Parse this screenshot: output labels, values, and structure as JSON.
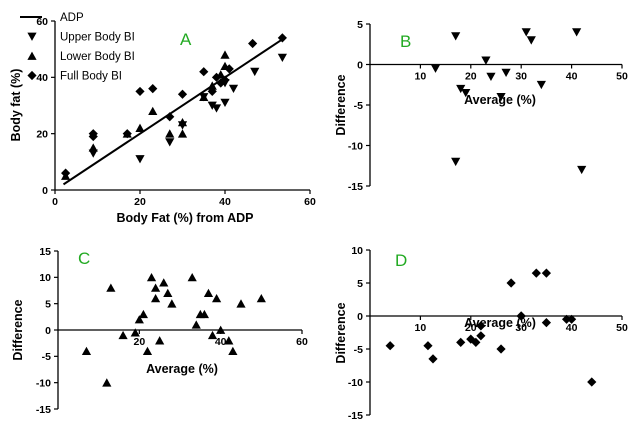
{
  "chart_data": [
    {
      "id": "A",
      "type": "scatter",
      "panel_label": "A",
      "xlabel": "Body Fat (%) from ADP",
      "ylabel": "Body fat (%)",
      "xlim": [
        0,
        60
      ],
      "ylim": [
        0,
        60
      ],
      "xticks": [
        0,
        20,
        40,
        60
      ],
      "yticks": [
        0,
        20,
        40,
        60
      ],
      "legend": {
        "placement": "top-left",
        "entries": [
          {
            "label": "ADP",
            "marker": "line"
          },
          {
            "label": "Upper Body BI",
            "marker": "triangle-down"
          },
          {
            "label": "Lower Body BI",
            "marker": "triangle-up"
          },
          {
            "label": "Full Body BI",
            "marker": "diamond"
          }
        ]
      },
      "line": {
        "name": "ADP",
        "x": [
          2,
          53.5
        ],
        "y": [
          2,
          53.5
        ]
      },
      "series": [
        {
          "name": "Upper Body BI",
          "marker": "triangle-down",
          "x": [
            9,
            20,
            27,
            30,
            35,
            37,
            38,
            40,
            40,
            42,
            47,
            53.5
          ],
          "y": [
            13,
            11,
            17,
            23,
            33,
            30,
            29,
            31,
            38,
            36,
            42,
            47
          ]
        },
        {
          "name": "Lower Body BI",
          "marker": "triangle-up",
          "x": [
            2.5,
            9,
            17,
            20,
            23,
            27,
            30,
            30,
            35,
            37,
            39,
            40,
            40
          ],
          "y": [
            5,
            15,
            20,
            22,
            28,
            20,
            24,
            20,
            33,
            37,
            41,
            44,
            48
          ]
        },
        {
          "name": "Full Body BI",
          "marker": "diamond",
          "x": [
            2.5,
            9,
            9,
            17,
            20,
            23,
            27,
            30,
            35,
            37,
            38,
            39,
            40,
            41,
            46.5,
            53.5
          ],
          "y": [
            6,
            19,
            20,
            20,
            35,
            36,
            26,
            34,
            42,
            35,
            40,
            38,
            39,
            43,
            52,
            54
          ]
        }
      ]
    },
    {
      "id": "B",
      "type": "scatter",
      "panel_label": "B",
      "xlabel": "Average (%)",
      "ylabel": "Difference",
      "xlim": [
        0,
        50
      ],
      "ylim": [
        -15,
        5
      ],
      "xticks": [
        10,
        20,
        30,
        40,
        50
      ],
      "yticks": [
        -15,
        -10,
        -5,
        0,
        5
      ],
      "series": [
        {
          "marker": "triangle-down",
          "x": [
            13,
            17,
            17,
            18,
            19,
            23,
            24,
            26,
            27,
            31,
            32,
            34,
            41,
            42
          ],
          "y": [
            -0.5,
            -12,
            3.5,
            -3,
            -3.5,
            0.5,
            -1.5,
            -4,
            -1,
            4,
            3,
            -2.5,
            4,
            -13
          ]
        }
      ]
    },
    {
      "id": "C",
      "type": "scatter",
      "panel_label": "C",
      "xlabel": "Average (%)",
      "ylabel": "Difference",
      "xlim": [
        0,
        60
      ],
      "ylim": [
        -15,
        15
      ],
      "xticks": [
        20,
        40,
        60
      ],
      "yticks": [
        -15,
        -10,
        -5,
        0,
        5,
        10,
        15
      ],
      "series": [
        {
          "marker": "triangle-up",
          "x": [
            7,
            12,
            13,
            16,
            19,
            20,
            21,
            22,
            23,
            24,
            24,
            25,
            26,
            27,
            28,
            33,
            34,
            35,
            36,
            37,
            38,
            39,
            40,
            42,
            43,
            45,
            50
          ],
          "y": [
            -4,
            -10,
            8,
            -1,
            -0.5,
            2,
            3,
            -4,
            10,
            6,
            8,
            -2,
            9,
            7,
            5,
            10,
            1,
            3,
            3,
            7,
            -1,
            6,
            0,
            -2,
            -4,
            5,
            6
          ]
        }
      ]
    },
    {
      "id": "D",
      "type": "scatter",
      "panel_label": "D",
      "xlabel": "Average (%)",
      "ylabel": "Difference",
      "xlim": [
        0,
        50
      ],
      "ylim": [
        -15,
        10
      ],
      "xticks": [
        10,
        20,
        30,
        40,
        50
      ],
      "yticks": [
        -15,
        -10,
        -5,
        0,
        5,
        10
      ],
      "series": [
        {
          "marker": "diamond",
          "x": [
            4,
            11.5,
            12.5,
            18,
            20,
            21,
            22,
            22,
            26,
            28,
            30,
            30,
            33,
            35,
            35,
            39,
            40,
            44
          ],
          "y": [
            -4.5,
            -4.5,
            -6.5,
            -4,
            -3.5,
            -4,
            -3,
            -1.5,
            -5,
            5,
            0,
            0,
            6.5,
            6.5,
            -1,
            -0.5,
            -0.5,
            -10
          ]
        }
      ]
    }
  ]
}
